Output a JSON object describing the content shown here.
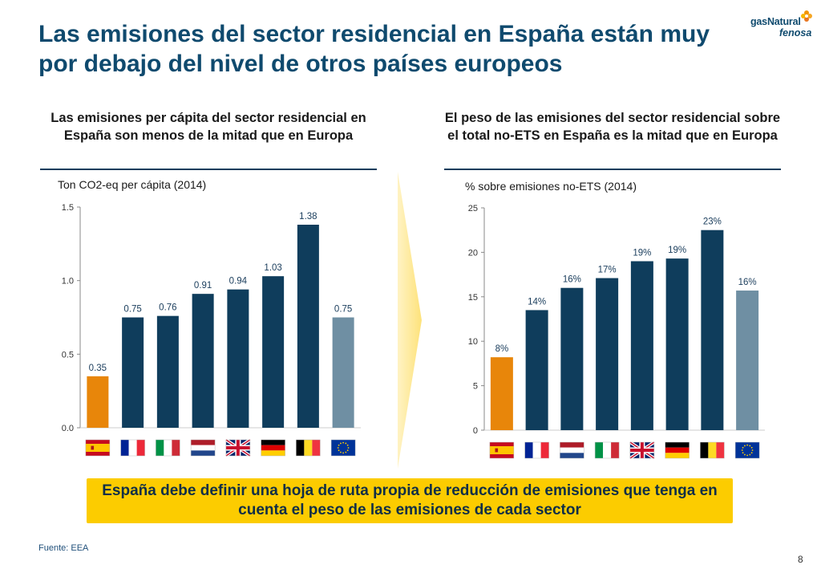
{
  "slide": {
    "title": "Las emisiones del sector residencial en España están muy por debajo del nivel de otros países europeos",
    "logo_line1": "gasNatural",
    "logo_line2": "fenosa",
    "callout": "España debe definir una hoja de ruta propia de reducción de emisiones que tenga en cuenta el peso de las emisiones de cada sector",
    "source": "Fuente: EEA",
    "page_number": "8"
  },
  "colors": {
    "spain": "#e8860a",
    "country": "#0f3d5c",
    "eu": "#6f8fa3",
    "title": "#0f4a6e",
    "callout_bg": "#fccc00",
    "arrow": "#fde27a"
  },
  "chart_data": [
    {
      "type": "bar",
      "title": "Las emisiones per cápita del sector residencial en España son menos de la mitad que en Europa",
      "ylabel": "Ton CO2-eq per cápita (2014)",
      "categories": [
        "España",
        "Francia",
        "Italia",
        "Países Bajos",
        "Reino Unido",
        "Alemania",
        "Bélgica",
        "UE"
      ],
      "flag_icons": [
        "spain-flag-icon",
        "france-flag-icon",
        "italy-flag-icon",
        "netherlands-flag-icon",
        "uk-flag-icon",
        "germany-flag-icon",
        "belgium-flag-icon",
        "eu-flag-icon"
      ],
      "values": [
        0.35,
        0.75,
        0.76,
        0.91,
        0.94,
        1.03,
        1.38,
        0.75
      ],
      "labels": [
        "0.35",
        "0.75",
        "0.76",
        "0.91",
        "0.94",
        "1.03",
        "1.38",
        "0.75"
      ],
      "ylim": [
        0,
        1.5
      ],
      "yticks": [
        0,
        0.5,
        1.0,
        1.5
      ],
      "ytick_labels": [
        "0.0",
        "0.5",
        "1.0",
        "1.5"
      ]
    },
    {
      "type": "bar",
      "title": "El peso de las emisiones del sector residencial sobre el total no-ETS en España es la mitad que en Europa",
      "ylabel": "% sobre emisiones no-ETS (2014)",
      "categories": [
        "España",
        "Francia",
        "Países Bajos",
        "Italia",
        "Reino Unido",
        "Alemania",
        "Bélgica",
        "UE"
      ],
      "flag_icons": [
        "spain-flag-icon",
        "france-flag-icon",
        "netherlands-flag-icon",
        "italy-flag-icon",
        "uk-flag-icon",
        "germany-flag-icon",
        "belgium-flag-icon",
        "eu-flag-icon"
      ],
      "values": [
        8.2,
        13.5,
        16.0,
        17.1,
        19.0,
        19.3,
        22.5,
        15.7
      ],
      "labels": [
        "8%",
        "14%",
        "16%",
        "17%",
        "19%",
        "19%",
        "23%",
        "16%"
      ],
      "ylim": [
        0,
        25
      ],
      "yticks": [
        0,
        5,
        10,
        15,
        20,
        25
      ],
      "ytick_labels": [
        "0",
        "5",
        "10",
        "15",
        "20",
        "25"
      ]
    }
  ]
}
